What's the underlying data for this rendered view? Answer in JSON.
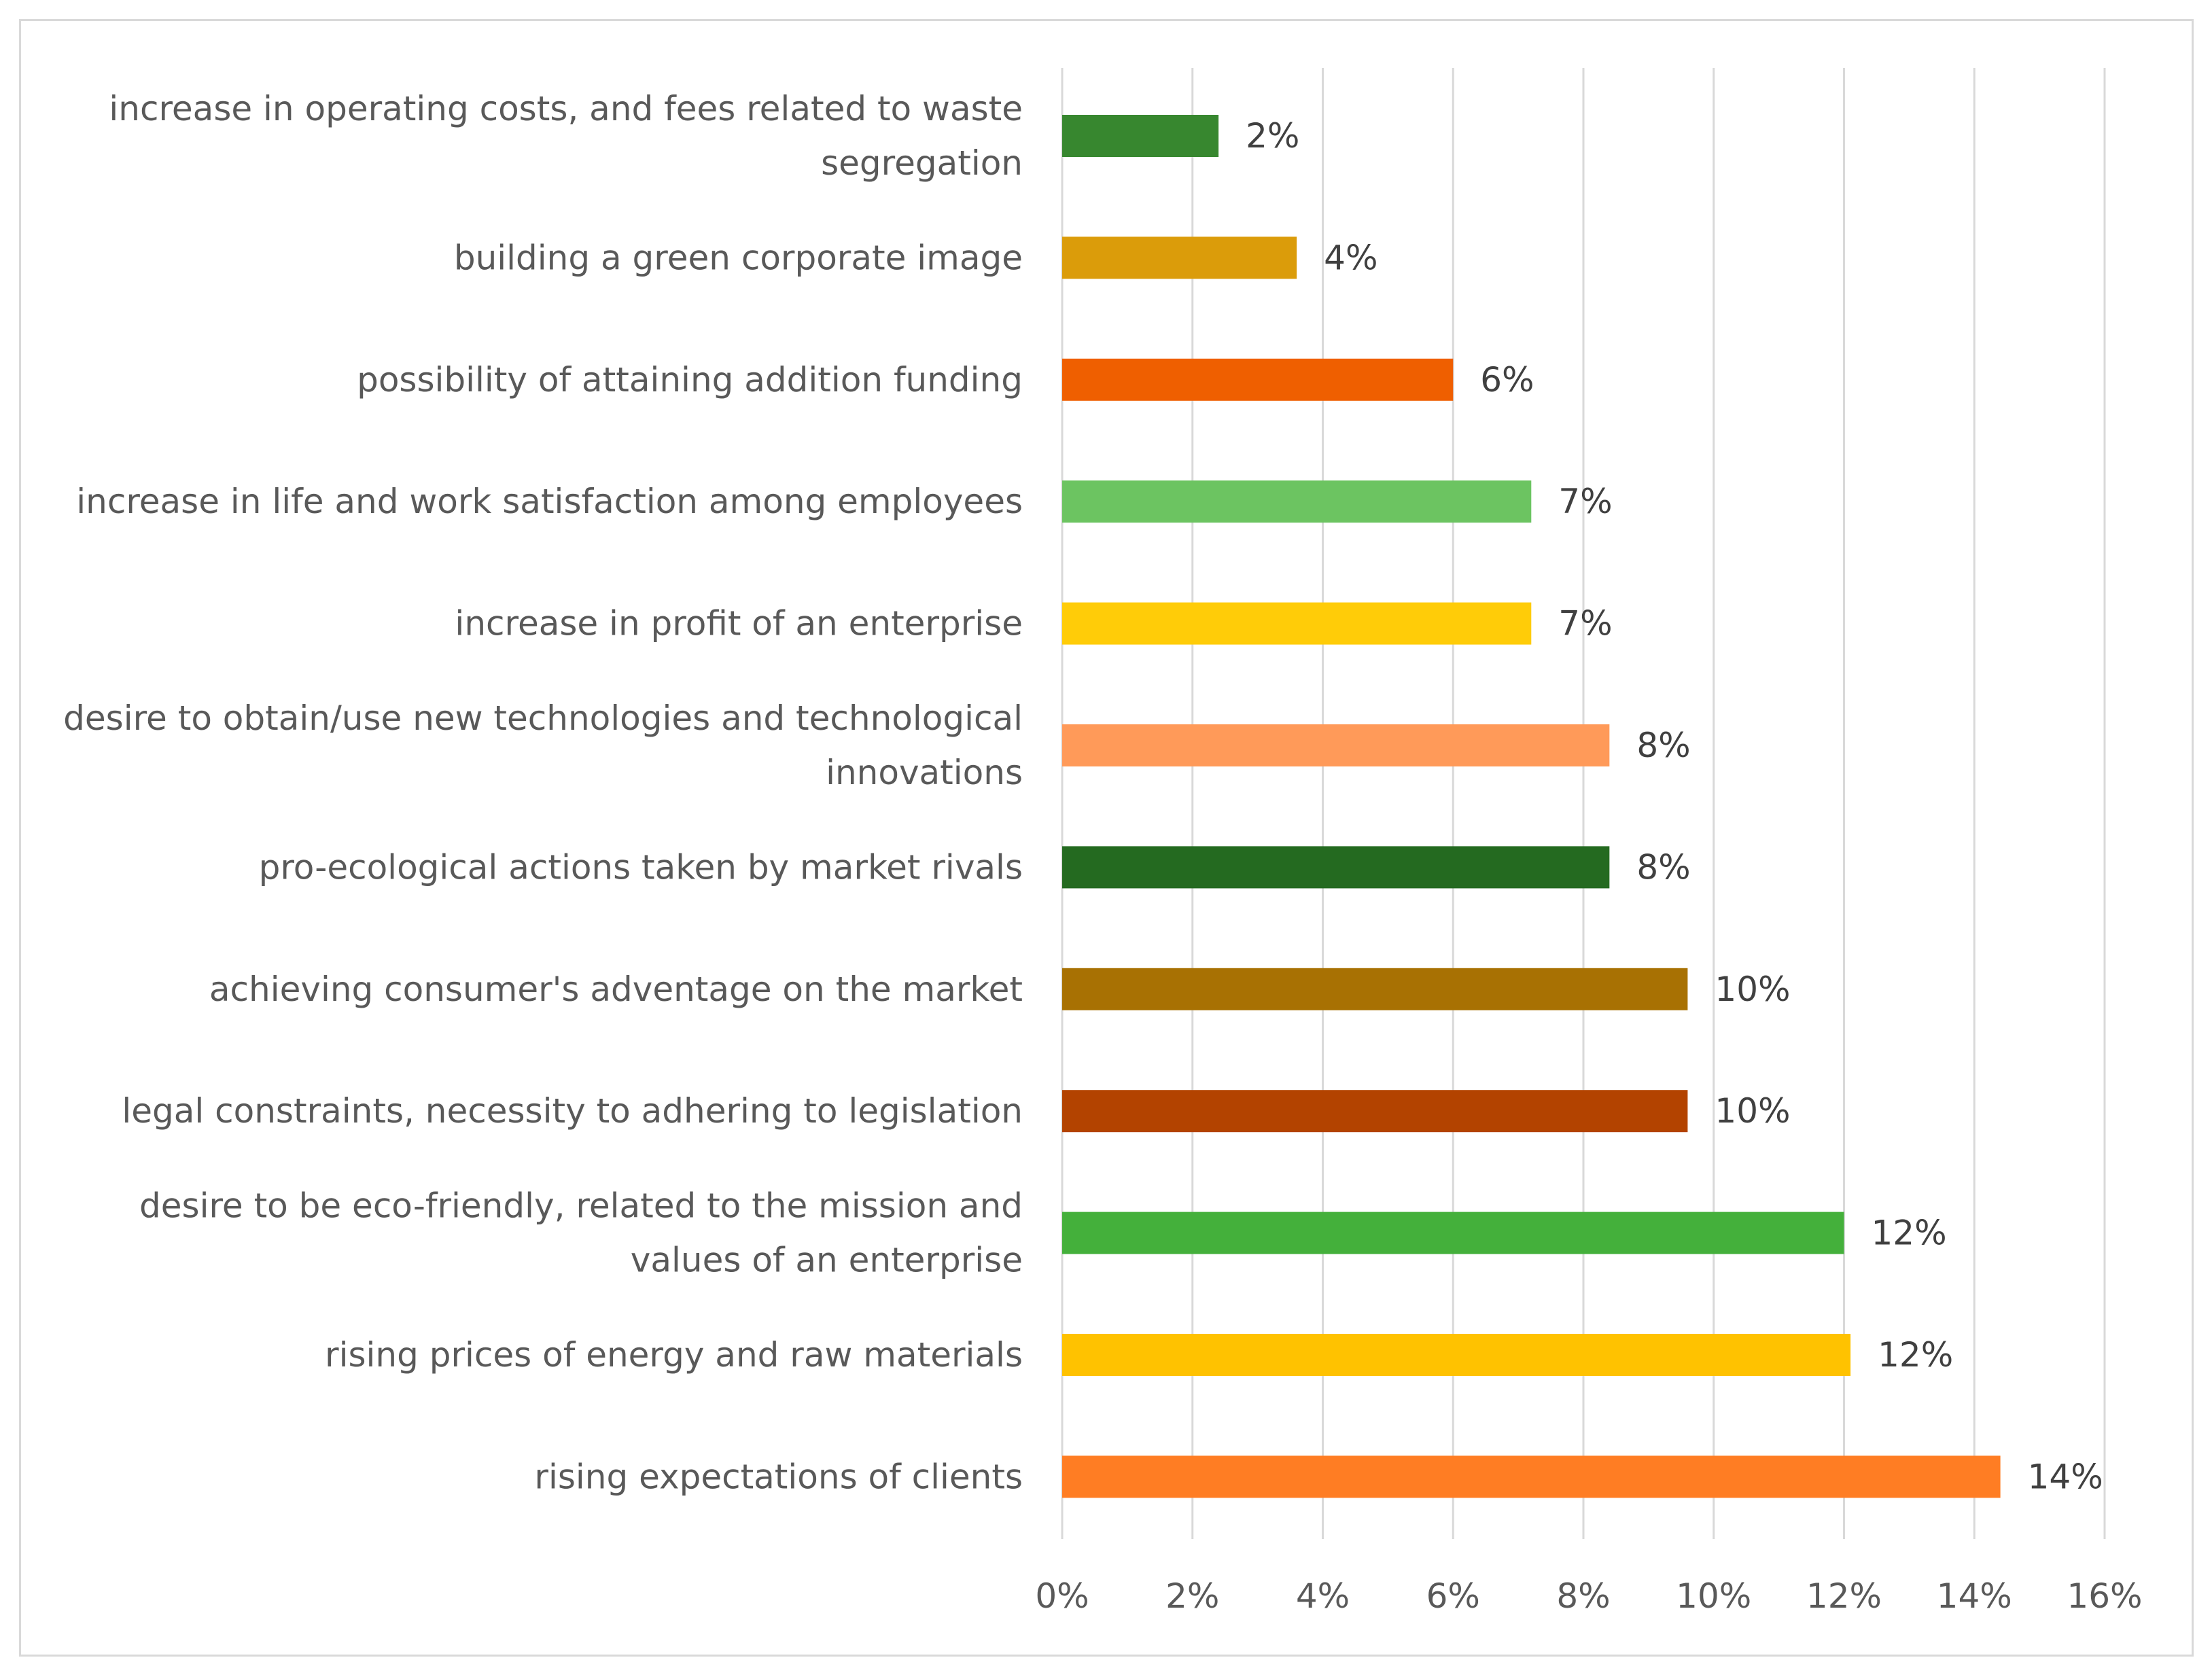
{
  "chart_data": {
    "type": "bar",
    "orientation": "horizontal",
    "title": "",
    "xlabel": "",
    "ylabel": "",
    "xlim": [
      0,
      16
    ],
    "x_ticks": [
      0,
      2,
      4,
      6,
      8,
      10,
      12,
      14,
      16
    ],
    "x_tick_labels": [
      "0%",
      "2%",
      "4%",
      "6%",
      "8%",
      "10%",
      "12%",
      "14%",
      "16%"
    ],
    "grid": "vertical",
    "legend": "none",
    "categories": [
      [
        "increase in operating costs, and fees related to waste",
        "segregation"
      ],
      [
        "building a green corporate image"
      ],
      [
        "possibility of attaining addition funding"
      ],
      [
        "increase in life and work satisfaction among employees"
      ],
      [
        "increase in profit of an enterprise"
      ],
      [
        "desire to obtain/use new technologies and technological",
        "innovations"
      ],
      [
        "pro-ecological actions taken by market rivals"
      ],
      [
        "achieving consumer's adventage on the market"
      ],
      [
        "legal constraints, necessity to adhering to legislation"
      ],
      [
        "desire to be eco-friendly, related to the mission and",
        "values of an enterprise"
      ],
      [
        "rising prices of energy and raw materials"
      ],
      [
        "rising expectations of clients"
      ]
    ],
    "values": [
      2.4,
      3.6,
      6.0,
      7.2,
      7.2,
      8.4,
      8.4,
      9.6,
      9.6,
      12.0,
      12.1,
      14.4
    ],
    "data_labels": [
      "2%",
      "4%",
      "6%",
      "7%",
      "7%",
      "8%",
      "8%",
      "10%",
      "10%",
      "12%",
      "12%",
      "14%"
    ],
    "colors": [
      "#37872f",
      "#db9c0a",
      "#ef5f00",
      "#6cc461",
      "#ffcc08",
      "#ff9a59",
      "#246a20",
      "#a87103",
      "#b34300",
      "#44b03b",
      "#ffc200",
      "#ff7d23"
    ]
  }
}
